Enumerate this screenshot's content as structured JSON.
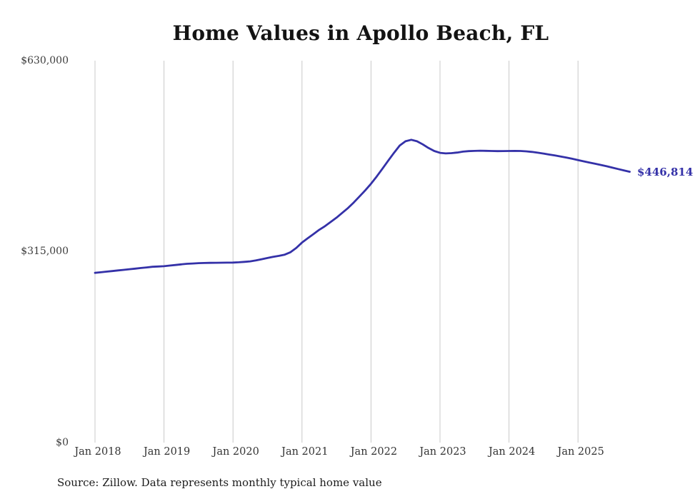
{
  "chart": {
    "title": "Home Values in Apollo Beach, FL",
    "y_tick_labels": [
      "$630,000",
      "$315,000",
      "$0"
    ],
    "latest_value_label": "$446,814",
    "source": "Source: Zillow. Data represents monthly typical home value"
  },
  "chart_data": {
    "type": "line",
    "title": "Home Values in Apollo Beach, FL",
    "series_name": "Monthly typical home value",
    "frequency": "monthly",
    "start_month": "2018-01",
    "end_month": "2025-10",
    "x_tick_labels": [
      "Jan 2018",
      "Jan 2019",
      "Jan 2020",
      "Jan 2021",
      "Jan 2022",
      "Jan 2023",
      "Jan 2024",
      "Jan 2025"
    ],
    "ylim": [
      0,
      630000
    ],
    "y_tick_values": [
      0,
      315000,
      630000
    ],
    "latest_value": 446814,
    "grid": "vertical-only",
    "legend": "none",
    "line_color": "#3431a8",
    "grid_color": "#c9c9c9",
    "values": [
      280000,
      281000,
      282000,
      283000,
      284000,
      285000,
      286000,
      287000,
      288000,
      289000,
      290000,
      290500,
      291000,
      292000,
      293000,
      294000,
      295000,
      295500,
      296000,
      296300,
      296500,
      296600,
      296800,
      296900,
      297000,
      297500,
      298200,
      299000,
      300500,
      302500,
      304500,
      306500,
      308000,
      310000,
      314000,
      321000,
      330000,
      337000,
      344000,
      351000,
      357000,
      364000,
      371000,
      379000,
      387000,
      396000,
      406000,
      416000,
      427000,
      439000,
      452000,
      465000,
      478000,
      490000,
      497000,
      499500,
      497000,
      492000,
      486000,
      481000,
      478000,
      477000,
      477500,
      478500,
      480000,
      480800,
      481200,
      481500,
      481300,
      481000,
      480800,
      480900,
      481000,
      481100,
      481000,
      480400,
      479500,
      478200,
      476800,
      475200,
      473600,
      472000,
      470200,
      468200,
      466000,
      464000,
      462000,
      460000,
      458000,
      455800,
      453500,
      451200,
      449000,
      446814
    ],
    "layout": {
      "x_first_tick": 133,
      "x_tick_spacing": 96.6,
      "y_top": 85,
      "y_bottom": 620
    }
  }
}
